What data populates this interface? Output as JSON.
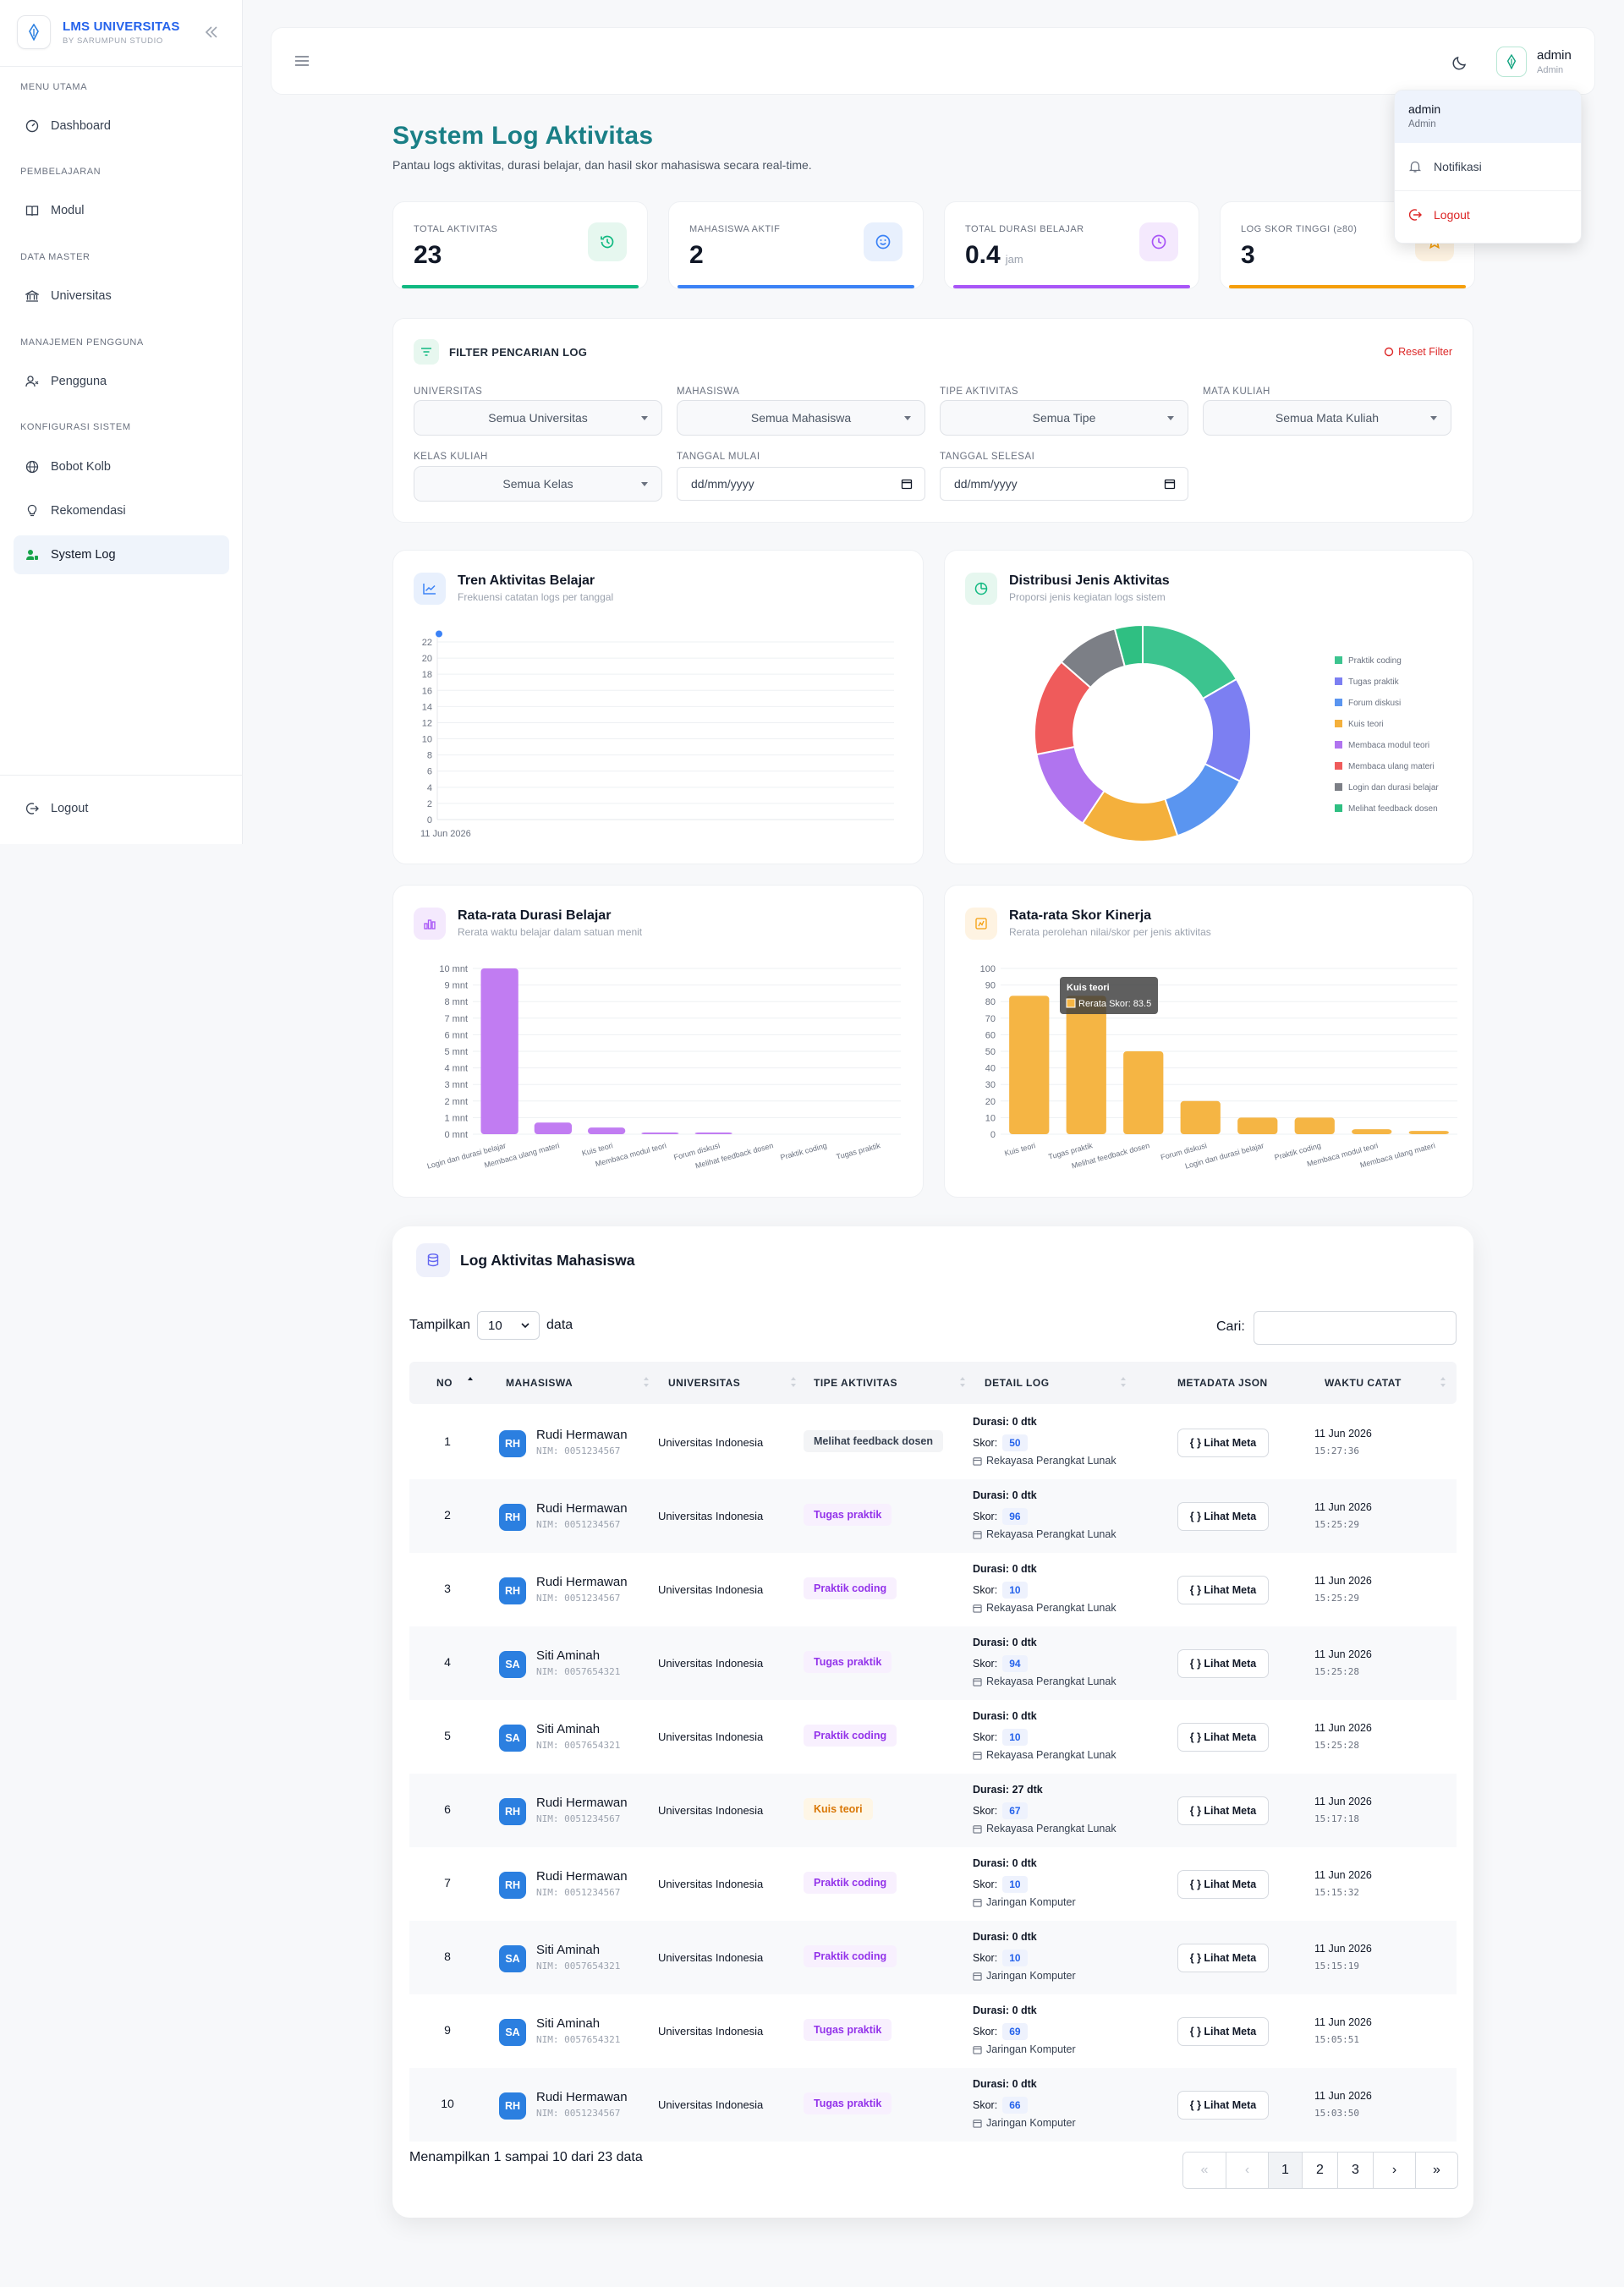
{
  "sidebar": {
    "brand": "LMS UNIVERSITAS",
    "brand_sub": "BY SARUMPUN STUDIO",
    "sections": [
      "MENU UTAMA",
      "PEMBELAJARAN",
      "DATA MASTER",
      "MANAJEMEN PENGGUNA",
      "KONFIGURASI SISTEM"
    ],
    "items": [
      {
        "label": "Dashboard",
        "icon": "gauge-icon"
      },
      {
        "label": "Modul",
        "icon": "book-icon"
      },
      {
        "label": "Universitas",
        "icon": "university-icon"
      },
      {
        "label": "Pengguna",
        "icon": "users-icon"
      },
      {
        "label": "Bobot Kolb",
        "icon": "globe-icon"
      },
      {
        "label": "Rekomendasi",
        "icon": "lightbulb-icon"
      },
      {
        "label": "System Log",
        "icon": "user-log-icon",
        "active": true
      }
    ],
    "logout": "Logout"
  },
  "header": {
    "user_name": "admin",
    "user_role": "Admin"
  },
  "dropdown": {
    "name": "admin",
    "role": "Admin",
    "notif": "Notifikasi",
    "logout": "Logout"
  },
  "page": {
    "title": "System Log Aktivitas",
    "subtitle": "Pantau logs aktivitas, durasi belajar, dan hasil skor mahasiswa secara real-time."
  },
  "stats": [
    {
      "label": "TOTAL AKTIVITAS",
      "value": "23",
      "unit": "",
      "color": "#10b981"
    },
    {
      "label": "MAHASISWA AKTIF",
      "value": "2",
      "unit": "",
      "color": "#3b82f6"
    },
    {
      "label": "TOTAL DURASI BELAJAR",
      "value": "0.4",
      "unit": "jam",
      "color": "#a855f7"
    },
    {
      "label": "LOG SKOR TINGGI (≥80)",
      "value": "3",
      "unit": "",
      "color": "#f59e0b"
    }
  ],
  "filter": {
    "title": "FILTER PENCARIAN LOG",
    "reset": "Reset Filter",
    "labels": [
      "UNIVERSITAS",
      "MAHASISWA",
      "TIPE AKTIVITAS",
      "MATA KULIAH",
      "KELAS KULIAH",
      "TANGGAL MULAI",
      "TANGGAL SELESAI"
    ],
    "values": [
      "Semua Universitas",
      "Semua Mahasiswa",
      "Semua Tipe",
      "Semua Mata Kuliah",
      "Semua Kelas",
      "dd/mm/yyyy",
      "dd/mm/yyyy"
    ]
  },
  "charts": {
    "trend": {
      "title": "Tren Aktivitas Belajar",
      "subtitle": "Frekuensi catatan logs per tanggal"
    },
    "dist": {
      "title": "Distribusi Jenis Aktivitas",
      "subtitle": "Proporsi jenis kegiatan logs sistem"
    },
    "durasi": {
      "title": "Rata-rata Durasi Belajar",
      "subtitle": "Rerata waktu belajar dalam satuan menit"
    },
    "skor": {
      "title": "Rata-rata Skor Kinerja",
      "subtitle": "Rerata perolehan nilai/skor per jenis aktivitas",
      "tooltip_title": "Kuis teori",
      "tooltip_value": "Rerata Skor: 83.5"
    }
  },
  "chart_data": [
    {
      "type": "line",
      "title": "Tren Aktivitas Belajar",
      "x": [
        "11 Jun 2026"
      ],
      "y": [
        23
      ],
      "ylim": [
        0,
        22
      ],
      "yticks": [
        0,
        2,
        4,
        6,
        8,
        10,
        12,
        14,
        16,
        18,
        20,
        22
      ],
      "grid": true
    },
    {
      "type": "pie",
      "title": "Distribusi Jenis Aktivitas",
      "labels": [
        "Praktik coding",
        "Tugas praktik",
        "Forum diskusi",
        "Kuis teori",
        "Membaca modul teori",
        "Membaca ulang materi",
        "Login dan durasi belajar",
        "Melihat feedback dosen"
      ],
      "values": [
        16,
        15,
        12,
        14,
        12,
        14,
        9,
        4
      ],
      "colors": [
        "#3cc48f",
        "#7c7ff2",
        "#5a95f0",
        "#f4b03c",
        "#b074ef",
        "#ef5b5b",
        "#7c7f86",
        "#2fbf82"
      ],
      "legend": "right"
    },
    {
      "type": "bar",
      "title": "Rata-rata Durasi Belajar",
      "categories": [
        "Login dan durasi belajar",
        "Membaca ulang materi",
        "Kuis teori",
        "Membaca modul teori",
        "Forum diskusi",
        "Melihat feedback dosen",
        "Praktik coding",
        "Tugas praktik"
      ],
      "values": [
        10,
        0.7,
        0.4,
        0.1,
        0.1,
        0,
        0,
        0
      ],
      "ylim": [
        0,
        10
      ],
      "yticks": [
        "0 mnt",
        "1 mnt",
        "2 mnt",
        "3 mnt",
        "4 mnt",
        "5 mnt",
        "6 mnt",
        "7 mnt",
        "8 mnt",
        "9 mnt",
        "10 mnt"
      ],
      "color": "#c17cf2"
    },
    {
      "type": "bar",
      "title": "Rata-rata Skor Kinerja",
      "categories": [
        "Kuis teori",
        "Tugas praktik",
        "Melihat feedback dosen",
        "Forum diskusi",
        "Login dan durasi belajar",
        "Praktik coding",
        "Membaca modul teori",
        "Membaca ulang materi"
      ],
      "values": [
        83.5,
        83.5,
        50,
        20,
        10,
        10,
        3,
        2
      ],
      "ylim": [
        0,
        100
      ],
      "yticks": [
        0,
        10,
        20,
        30,
        40,
        50,
        60,
        70,
        80,
        90,
        100
      ],
      "color": "#f5b544"
    }
  ],
  "table": {
    "title": "Log Aktivitas Mahasiswa",
    "show_label": "Tampilkan",
    "per_page": "10",
    "data_label": "data",
    "search_label": "Cari:",
    "columns": [
      "NO",
      "MAHASISWA",
      "UNIVERSITAS",
      "TIPE AKTIVITAS",
      "DETAIL LOG",
      "METADATA JSON",
      "WAKTU CATAT"
    ],
    "dur_label": "Durasi:",
    "skor_label": "Skor:",
    "meta_label": "{ } Lihat Meta",
    "rows": [
      {
        "no": "1",
        "init": "RH",
        "name": "Rudi Hermawan",
        "nim": "NIM: 0051234567",
        "univ": "Universitas Indonesia",
        "type": "Melihat feedback dosen",
        "tcolor": "#374151",
        "tbg": "#f3f4f6",
        "dur": "0 dtk",
        "skor": "50",
        "course": "Rekayasa Perangkat Lunak",
        "date": "11 Jun 2026",
        "time": "15:27:36"
      },
      {
        "no": "2",
        "init": "RH",
        "name": "Rudi Hermawan",
        "nim": "NIM: 0051234567",
        "univ": "Universitas Indonesia",
        "type": "Tugas praktik",
        "tcolor": "#9333ea",
        "tbg": "#f8f0fe",
        "dur": "0 dtk",
        "skor": "96",
        "course": "Rekayasa Perangkat Lunak",
        "date": "11 Jun 2026",
        "time": "15:25:29"
      },
      {
        "no": "3",
        "init": "RH",
        "name": "Rudi Hermawan",
        "nim": "NIM: 0051234567",
        "univ": "Universitas Indonesia",
        "type": "Praktik coding",
        "tcolor": "#9333ea",
        "tbg": "#f8f0fe",
        "dur": "0 dtk",
        "skor": "10",
        "course": "Rekayasa Perangkat Lunak",
        "date": "11 Jun 2026",
        "time": "15:25:29"
      },
      {
        "no": "4",
        "init": "SA",
        "name": "Siti Aminah",
        "nim": "NIM: 0057654321",
        "univ": "Universitas Indonesia",
        "type": "Tugas praktik",
        "tcolor": "#9333ea",
        "tbg": "#f8f0fe",
        "dur": "0 dtk",
        "skor": "94",
        "course": "Rekayasa Perangkat Lunak",
        "date": "11 Jun 2026",
        "time": "15:25:28"
      },
      {
        "no": "5",
        "init": "SA",
        "name": "Siti Aminah",
        "nim": "NIM: 0057654321",
        "univ": "Universitas Indonesia",
        "type": "Praktik coding",
        "tcolor": "#9333ea",
        "tbg": "#f8f0fe",
        "dur": "0 dtk",
        "skor": "10",
        "course": "Rekayasa Perangkat Lunak",
        "date": "11 Jun 2026",
        "time": "15:25:28"
      },
      {
        "no": "6",
        "init": "RH",
        "name": "Rudi Hermawan",
        "nim": "NIM: 0051234567",
        "univ": "Universitas Indonesia",
        "type": "Kuis teori",
        "tcolor": "#d97706",
        "tbg": "#fef6e6",
        "dur": "27 dtk",
        "skor": "67",
        "course": "Rekayasa Perangkat Lunak",
        "date": "11 Jun 2026",
        "time": "15:17:18"
      },
      {
        "no": "7",
        "init": "RH",
        "name": "Rudi Hermawan",
        "nim": "NIM: 0051234567",
        "univ": "Universitas Indonesia",
        "type": "Praktik coding",
        "tcolor": "#9333ea",
        "tbg": "#f8f0fe",
        "dur": "0 dtk",
        "skor": "10",
        "course": "Jaringan Komputer",
        "date": "11 Jun 2026",
        "time": "15:15:32"
      },
      {
        "no": "8",
        "init": "SA",
        "name": "Siti Aminah",
        "nim": "NIM: 0057654321",
        "univ": "Universitas Indonesia",
        "type": "Praktik coding",
        "tcolor": "#9333ea",
        "tbg": "#f8f0fe",
        "dur": "0 dtk",
        "skor": "10",
        "course": "Jaringan Komputer",
        "date": "11 Jun 2026",
        "time": "15:15:19"
      },
      {
        "no": "9",
        "init": "SA",
        "name": "Siti Aminah",
        "nim": "NIM: 0057654321",
        "univ": "Universitas Indonesia",
        "type": "Tugas praktik",
        "tcolor": "#9333ea",
        "tbg": "#f8f0fe",
        "dur": "0 dtk",
        "skor": "69",
        "course": "Jaringan Komputer",
        "date": "11 Jun 2026",
        "time": "15:05:51"
      },
      {
        "no": "10",
        "init": "RH",
        "name": "Rudi Hermawan",
        "nim": "NIM: 0051234567",
        "univ": "Universitas Indonesia",
        "type": "Tugas praktik",
        "tcolor": "#9333ea",
        "tbg": "#f8f0fe",
        "dur": "0 dtk",
        "skor": "66",
        "course": "Jaringan Komputer",
        "date": "11 Jun 2026",
        "time": "15:03:50"
      }
    ],
    "summary": "Menampilkan 1 sampai 10 dari 23 data",
    "pages": [
      "«",
      "‹",
      "1",
      "2",
      "3",
      "›",
      "»"
    ]
  }
}
